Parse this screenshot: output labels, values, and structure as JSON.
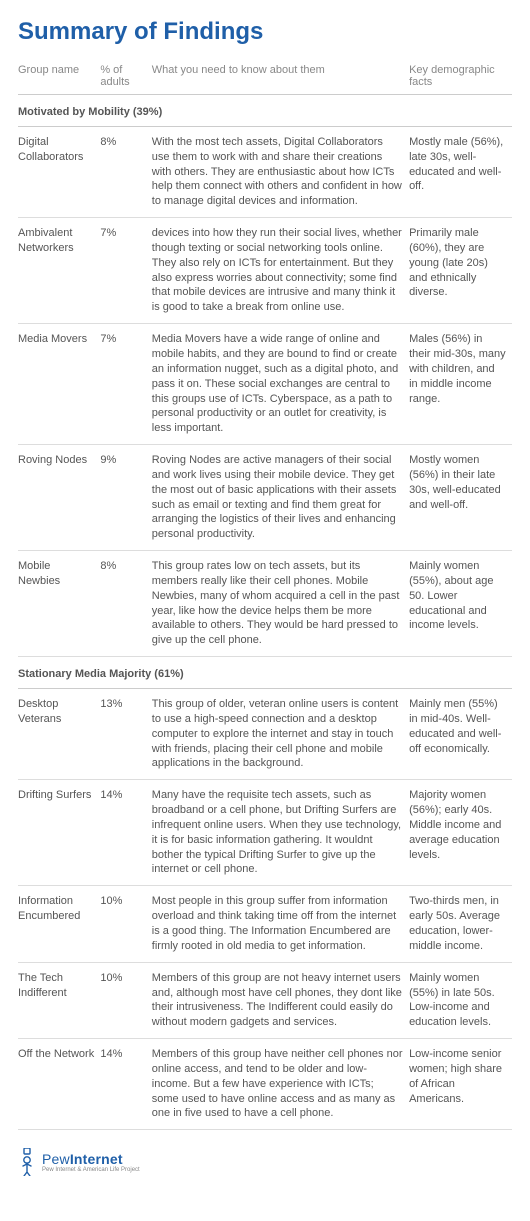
{
  "title": "Summary of Findings",
  "title_color": "#1f5fa8",
  "headers": {
    "group": "Group name",
    "pct": "% of adults",
    "desc": "What you need to know about them",
    "demo": "Key demographic facts"
  },
  "sections": [
    {
      "label": "Motivated by Mobility (39%)"
    },
    {
      "label": "Stationary Media Majority (61%)"
    }
  ],
  "rows1": [
    {
      "group": "Digital Collaborators",
      "pct": "8%",
      "desc": "With the most tech assets, Digital Collaborators use them to work with and share their creations with others. They are enthusiastic about how ICTs help them connect with others and confident in how to manage digital devices and information.",
      "demo": "Mostly male (56%), late 30s, well-educated and well-off."
    },
    {
      "group": "Ambivalent Networkers",
      "pct": "7%",
      "desc": "devices into how they run their social lives, whether though texting or social networking tools online. They also rely on ICTs for entertainment. But they also express worries about connectivity; some find that mobile devices are intrusive and many think it is good to take a break from online use.",
      "demo": "Primarily male (60%), they are young (late 20s) and ethnically diverse."
    },
    {
      "group": "Media Movers",
      "pct": "7%",
      "desc": "Media Movers have a wide range of online and mobile habits, and they are bound to find or create an information nugget, such as a digital photo, and pass it on. These social exchanges are central to this groups use of ICTs. Cyberspace, as a path to personal productivity or an outlet for creativity, is less important.",
      "demo": "Males (56%) in their mid-30s, many with children, and in middle income range."
    },
    {
      "group": "Roving Nodes",
      "pct": "9%",
      "desc": "Roving Nodes are active managers of their social and work lives using their mobile device. They get the most out of basic applications with their assets  such as email or texting  and find them great for arranging the logistics of their lives and enhancing personal productivity.",
      "demo": "Mostly women (56%) in their late 30s, well-educated and well-off."
    },
    {
      "group": "Mobile Newbies",
      "pct": "8%",
      "desc": "This group rates low on tech assets, but its members really like their cell phones. Mobile Newbies, many of whom acquired a cell in the past year, like how the device helps them be more available to others. They would be hard pressed to give up the cell phone.",
      "demo": "Mainly women (55%), about age 50. Lower educational and income levels."
    }
  ],
  "rows2": [
    {
      "group": "Desktop Veterans",
      "pct": "13%",
      "desc": "This group of older, veteran online users is content to use a high-speed connection and a desktop computer to explore the internet and stay in touch with friends, placing their cell phone and mobile applications in the background.",
      "demo": "Mainly men (55%) in mid-40s. Well-educated and well-off economically."
    },
    {
      "group": "Drifting Surfers",
      "pct": "14%",
      "desc": "Many have the requisite tech assets, such as broadband or a cell phone, but Drifting Surfers are infrequent online users. When they use technology, it is for basic information gathering. It wouldnt bother the typical Drifting Surfer to give up the internet or cell phone.",
      "demo": "Majority women (56%); early 40s. Middle income and average education levels."
    },
    {
      "group": "Information Encumbered",
      "pct": "10%",
      "desc": "Most people in this group suffer from information overload and think taking time off from the internet is a good thing. The Information Encumbered are firmly rooted in old media to get information.",
      "demo": "Two-thirds men, in early 50s. Average education, lower-middle income."
    },
    {
      "group": "The Tech Indifferent",
      "pct": "10%",
      "desc": "Members of this group are not heavy internet users and, although most have cell phones, they dont like their intrusiveness. The Indifferent could easily do without modern gadgets and services.",
      "demo": "Mainly women (55%) in late 50s. Low-income and education levels."
    },
    {
      "group": "Off the Network",
      "pct": "14%",
      "desc": "Members of this group have neither cell phones nor online access, and tend to be older and low-income. But a few have experience with ICTs; some used to have online access and as many as one in five used to have a cell phone.",
      "demo": "Low-income senior women; high share of African Americans."
    }
  ],
  "logo": {
    "light": "Pew",
    "bold": "Internet",
    "sub": "Pew Internet & American Life Project",
    "color": "#1f5fa8"
  }
}
